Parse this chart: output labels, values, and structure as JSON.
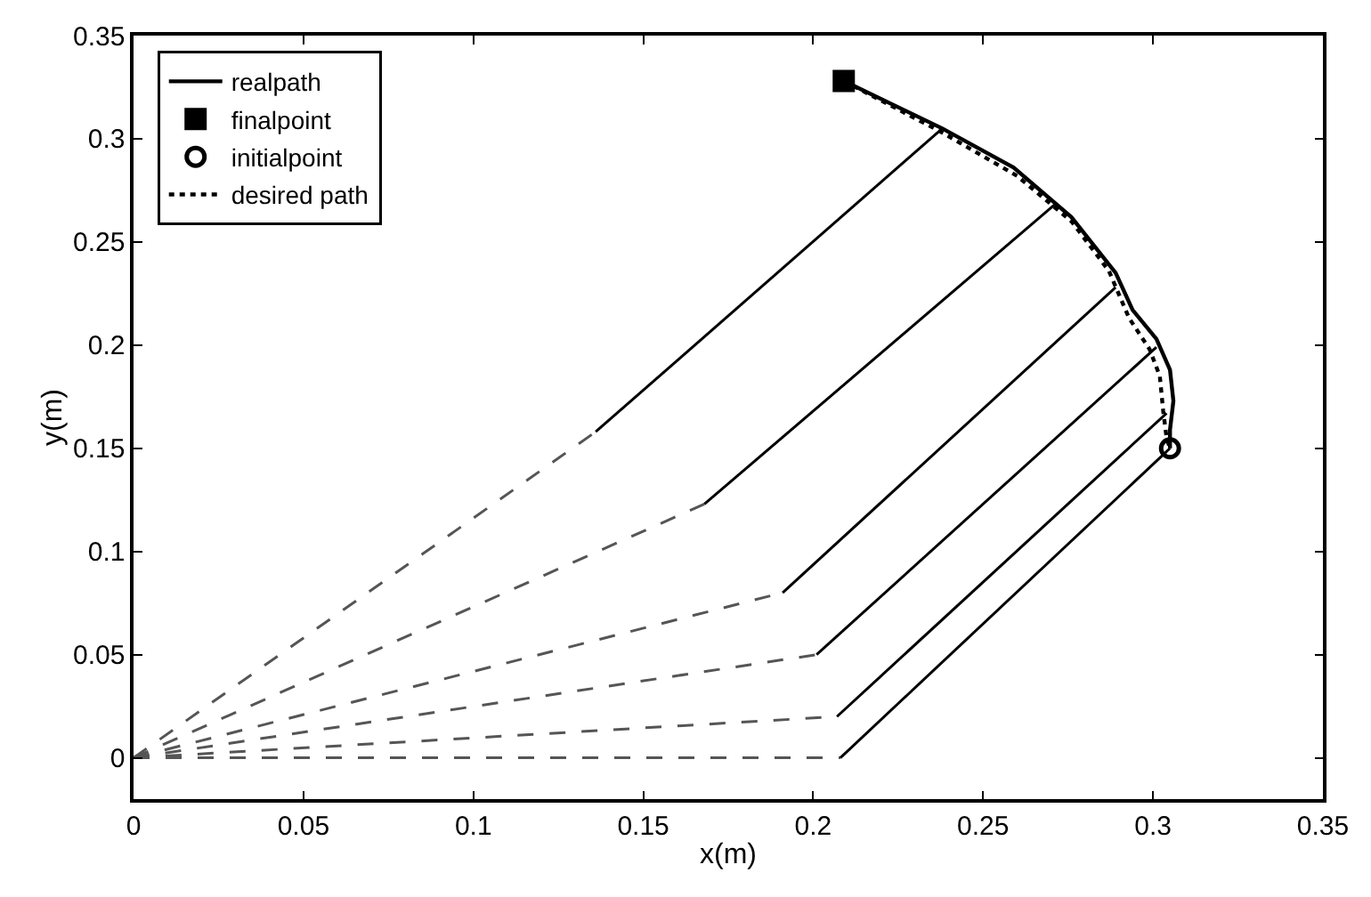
{
  "chart_data": {
    "type": "line",
    "xlabel": "x(m)",
    "ylabel": "y(m)",
    "xlim": [
      0,
      0.35
    ],
    "xticks": [
      0,
      0.05,
      0.1,
      0.15,
      0.2,
      0.25,
      0.3,
      0.35
    ],
    "ylim": [
      -0.02,
      0.35
    ],
    "yticks": [
      0,
      0.05,
      0.1,
      0.15,
      0.2,
      0.25,
      0.3,
      0.35
    ],
    "grid": false,
    "legend": "top left",
    "series": [
      {
        "name": "realpath",
        "line_style": "solid",
        "marker": "none",
        "color": "#000000",
        "x": [
          0.209,
          0.238,
          0.259,
          0.276,
          0.289,
          0.294,
          0.301,
          0.305,
          0.306,
          0.305,
          0.305
        ],
        "values": [
          0.328,
          0.305,
          0.286,
          0.262,
          0.235,
          0.217,
          0.203,
          0.188,
          0.173,
          0.159,
          0.15
        ]
      },
      {
        "name": "finalpoint",
        "type": "scatter",
        "marker": "square",
        "color": "#000000",
        "x": [
          0.209
        ],
        "values": [
          0.328
        ]
      },
      {
        "name": "initialpoint",
        "type": "scatter",
        "marker": "circle",
        "color": "#000000",
        "x": [
          0.305
        ],
        "values": [
          0.15
        ]
      },
      {
        "name": "desired path",
        "line_style": "dotted",
        "marker": "none",
        "color": "#000000",
        "x": [
          0.209,
          0.238,
          0.26,
          0.276,
          0.287,
          0.293,
          0.299,
          0.302,
          0.303,
          0.304,
          0.305
        ],
        "values": [
          0.328,
          0.303,
          0.282,
          0.26,
          0.236,
          0.213,
          0.198,
          0.185,
          0.168,
          0.155,
          0.15
        ]
      },
      {
        "line_style": "dashed",
        "marker": "none",
        "color": "#555555",
        "x": [
          0,
          0.136
        ],
        "values": [
          0,
          0.158
        ]
      },
      {
        "line_style": "solid",
        "marker": "none",
        "color": "#000000",
        "x": [
          0.136,
          0.238
        ],
        "values": [
          0.158,
          0.305
        ]
      },
      {
        "line_style": "dashed",
        "marker": "none",
        "color": "#555555",
        "x": [
          0,
          0.168
        ],
        "values": [
          0,
          0.123
        ]
      },
      {
        "line_style": "solid",
        "marker": "none",
        "color": "#000000",
        "x": [
          0.168,
          0.271
        ],
        "values": [
          0.123,
          0.268
        ]
      },
      {
        "line_style": "dashed",
        "marker": "none",
        "color": "#555555",
        "x": [
          0,
          0.191
        ],
        "values": [
          0,
          0.08
        ]
      },
      {
        "line_style": "solid",
        "marker": "none",
        "color": "#000000",
        "x": [
          0.191,
          0.289
        ],
        "values": [
          0.08,
          0.228
        ]
      },
      {
        "line_style": "dashed",
        "marker": "none",
        "color": "#555555",
        "x": [
          0,
          0.201
        ],
        "values": [
          0,
          0.05
        ]
      },
      {
        "line_style": "solid",
        "marker": "none",
        "color": "#000000",
        "x": [
          0.201,
          0.301
        ],
        "values": [
          0.05,
          0.199
        ]
      },
      {
        "line_style": "dashed",
        "marker": "none",
        "color": "#555555",
        "x": [
          0,
          0.207
        ],
        "values": [
          0,
          0.02
        ]
      },
      {
        "line_style": "solid",
        "marker": "none",
        "color": "#000000",
        "x": [
          0.207,
          0.304
        ],
        "values": [
          0.02,
          0.167
        ]
      },
      {
        "line_style": "dashed",
        "marker": "none",
        "color": "#555555",
        "x": [
          0,
          0.208
        ],
        "values": [
          0,
          0.0
        ]
      },
      {
        "line_style": "solid",
        "marker": "none",
        "color": "#000000",
        "x": [
          0.208,
          0.305
        ],
        "values": [
          0.0,
          0.15
        ]
      }
    ]
  }
}
